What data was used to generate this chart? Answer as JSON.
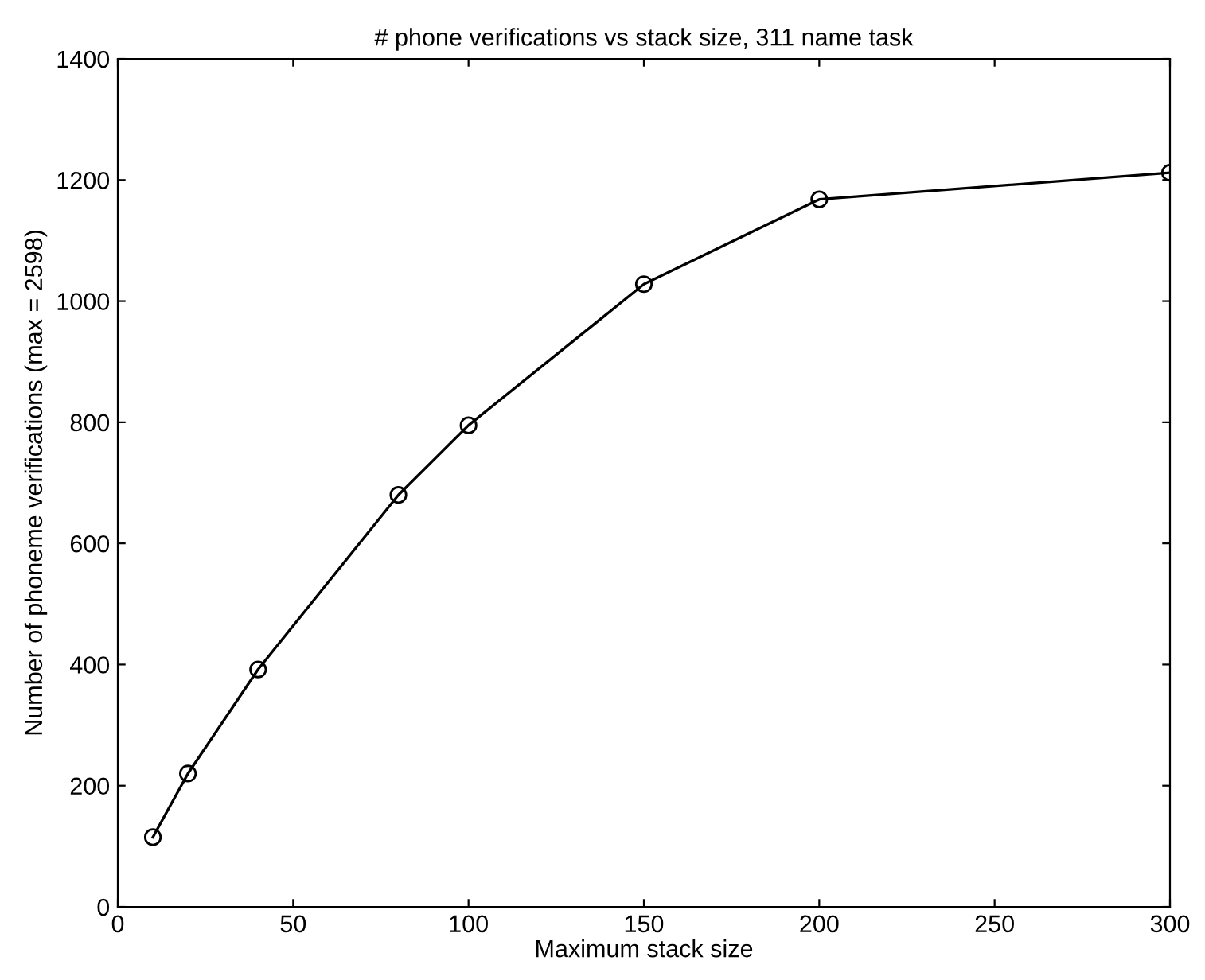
{
  "chart_data": {
    "type": "line",
    "title": "# phone verifications vs stack size, 311 name task",
    "xlabel": "Maximum stack size",
    "ylabel": "Number of phoneme verifications (max = 2598)",
    "x": [
      10,
      20,
      40,
      80,
      100,
      150,
      200,
      300
    ],
    "series": [
      {
        "color": "#000000",
        "values": [
          115,
          220,
          392,
          680,
          795,
          1028,
          1168,
          1212
        ]
      }
    ],
    "xlim": [
      0,
      300
    ],
    "xticks": [
      0,
      50,
      100,
      150,
      200,
      250,
      300
    ],
    "ylim": [
      0,
      1400
    ],
    "yticks": [
      0,
      200,
      400,
      600,
      800,
      1000,
      1200,
      1400
    ],
    "grid": false,
    "legend": false,
    "marker": "circle",
    "line_style": "solid"
  }
}
